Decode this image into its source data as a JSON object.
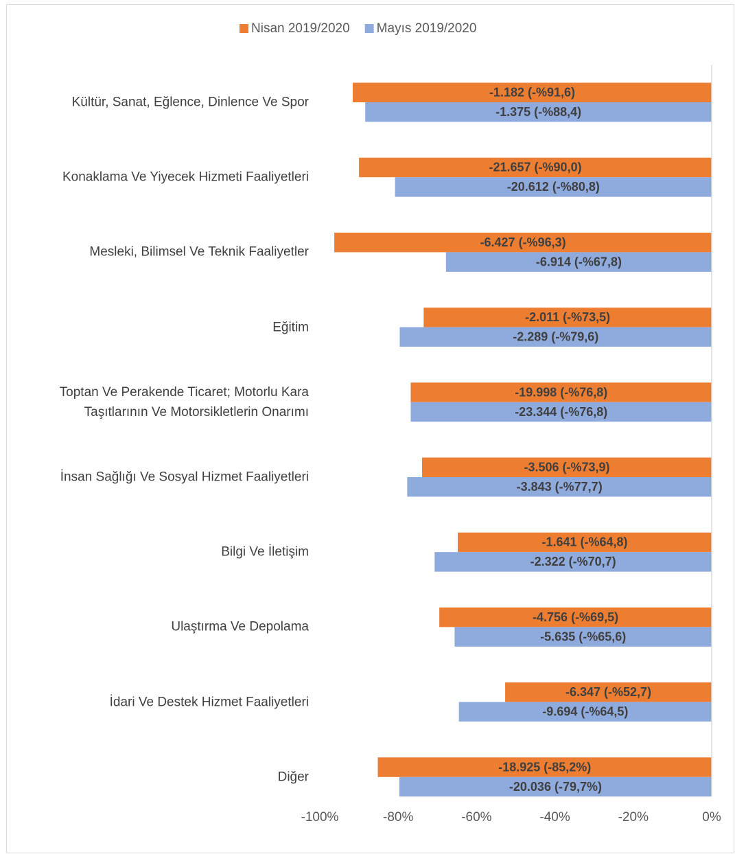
{
  "chart_data": {
    "type": "barh",
    "categories": [
      "Kültür, Sanat, Eğlence, Dinlence Ve Spor",
      "Konaklama Ve Yiyecek Hizmeti Faaliyetleri",
      "Mesleki, Bilimsel Ve Teknik Faaliyetler",
      "Eğitim",
      "Toptan Ve Perakende Ticaret; Motorlu Kara\nTaşıtlarının Ve Motorsikletlerin Onarımı",
      "İnsan Sağlığı Ve Sosyal Hizmet Faaliyetleri",
      "Bilgi Ve İletişim",
      "Ulaştırma Ve Depolama",
      "İdari Ve Destek Hizmet Faaliyetleri",
      "Diğer"
    ],
    "series": [
      {
        "name": "Nisan 2019/2020",
        "color": "#ed7d31",
        "values": [
          -91.6,
          -90.0,
          -96.3,
          -73.5,
          -76.8,
          -73.9,
          -64.8,
          -69.5,
          -52.7,
          -85.2
        ],
        "value_labels": [
          "-1.182 (-%91,6)",
          "-21.657 (-%90,0)",
          "-6.427 (-%96,3)",
          "-2.011 (-%73,5)",
          "-19.998 (-%76,8)",
          "-3.506 (-%73,9)",
          "-1.641 (-%64,8)",
          "-4.756 (-%69,5)",
          "-6.347 (-%52,7)",
          "-18.925 (-85,2%)"
        ]
      },
      {
        "name": "Mayıs 2019/2020",
        "color": "#8faadc",
        "values": [
          -88.4,
          -80.8,
          -67.8,
          -79.6,
          -76.8,
          -77.7,
          -70.7,
          -65.6,
          -64.5,
          -79.7
        ],
        "value_labels": [
          "-1.375 (-%88,4)",
          "-20.612 (-%80,8)",
          "-6.914 (-%67,8)",
          "-2.289 (-%79,6)",
          "-23.344 (-%76,8)",
          "-3.843 (-%77,7)",
          "-2.322 (-%70,7)",
          "-5.635 (-%65,6)",
          "-9.694 (-%64,5)",
          "-20.036 (-79,7%)"
        ]
      }
    ],
    "xlim": [
      -100,
      0
    ],
    "xticks": [
      {
        "value": -100,
        "label": "-100%"
      },
      {
        "value": -80,
        "label": "-80%"
      },
      {
        "value": -60,
        "label": "-60%"
      },
      {
        "value": -40,
        "label": "-40%"
      },
      {
        "value": -20,
        "label": "-20%"
      },
      {
        "value": 0,
        "label": "0%"
      }
    ],
    "legend": "top"
  }
}
